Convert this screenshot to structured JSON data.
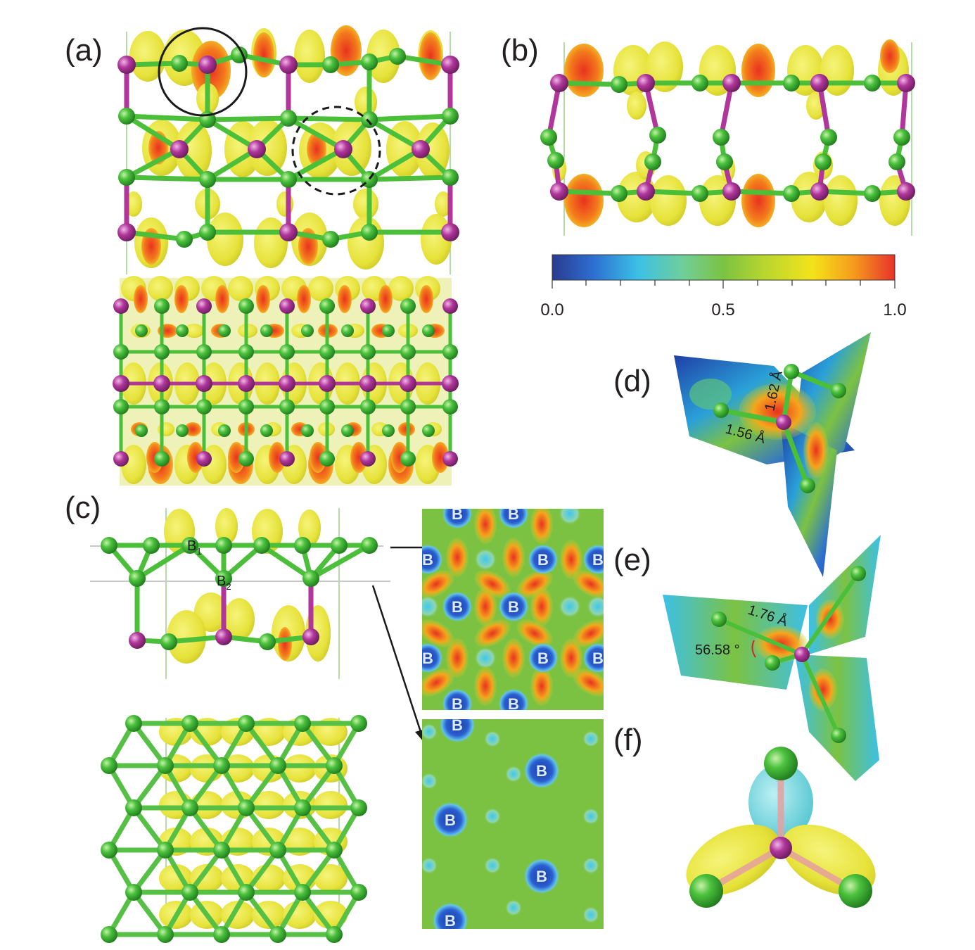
{
  "panels": {
    "a": "(a)",
    "b": "(b)",
    "c": "(c)",
    "d": "(d)",
    "e": "(e)",
    "f": "(f)"
  },
  "colorbar": {
    "ticks": [
      "0.0",
      "0.5",
      "1.0"
    ],
    "stops": [
      "#2b3a8f",
      "#2d6fd1",
      "#3cc0e6",
      "#6fcf9a",
      "#7cc242",
      "#b8d62e",
      "#f4e31a",
      "#f59b1c",
      "#e8322a"
    ]
  },
  "atom_labels": {
    "B1_base": "B",
    "B1_sub": "1",
    "B2_base": "B",
    "B2_sub": "2",
    "boron": "B"
  },
  "annotations": {
    "d_bond1": "1.62 Å",
    "d_bond2": "1.56 Å",
    "e_bond": "1.76 Å",
    "e_angle": "56.58 °"
  },
  "colors": {
    "boron_green": "#3db53a",
    "metal_magenta": "#b0369b",
    "isosurface_yellow": "#e8e83a",
    "isosurface_red": "#e8421f",
    "elf_background": "#7cc242",
    "elf_blue": "#2246b8",
    "elf_cyan": "#55d8f0"
  }
}
